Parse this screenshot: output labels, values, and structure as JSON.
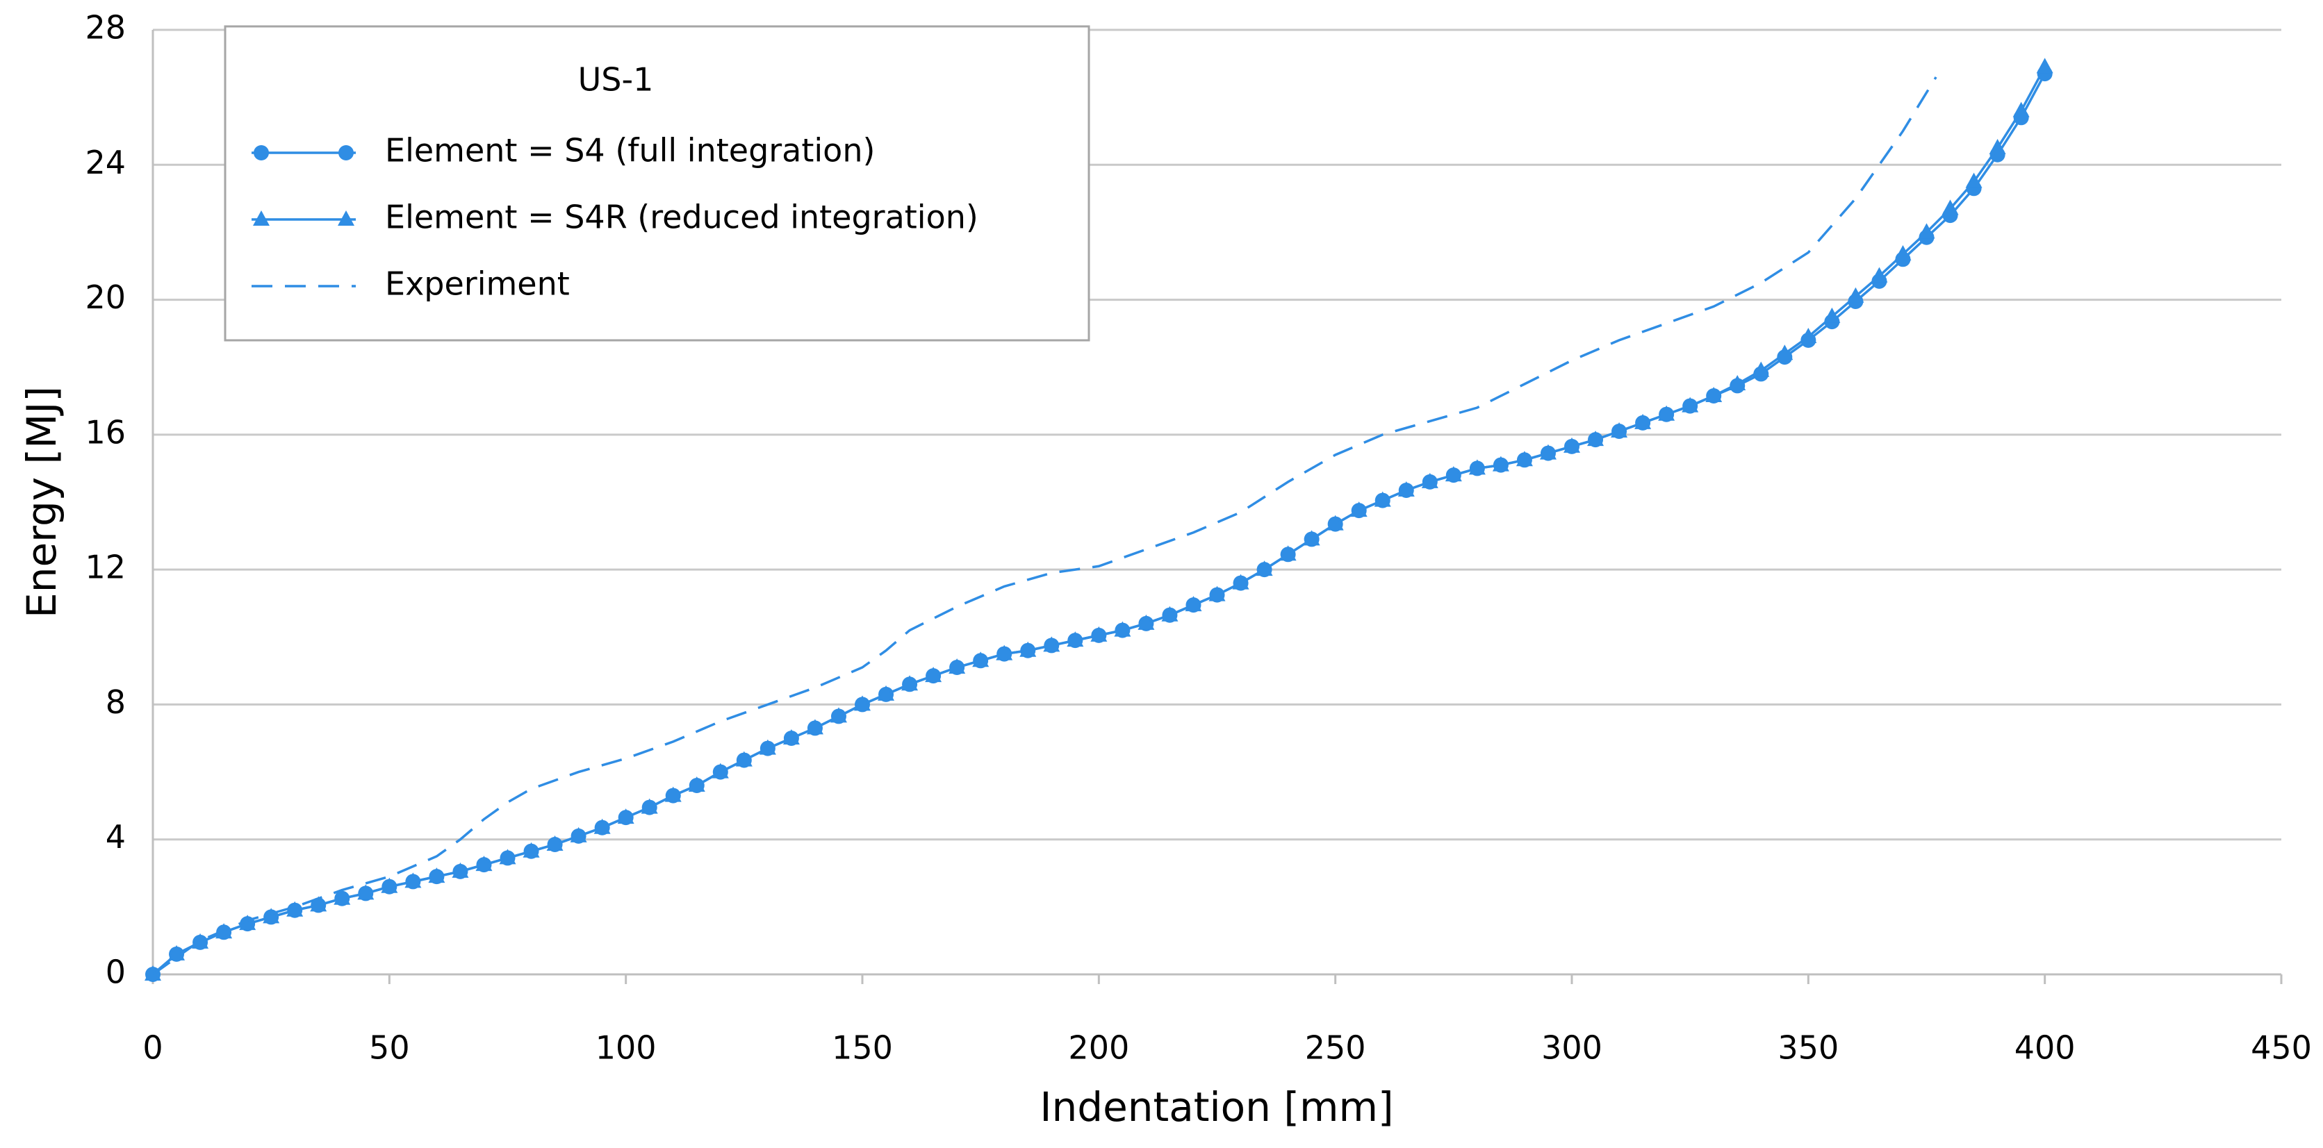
{
  "chart_data": {
    "type": "line",
    "xlabel": "Indentation [mm]",
    "ylabel": "Energy [MJ]",
    "legend_title": "US-1",
    "legend": "upper left",
    "grid": true,
    "xlim": [
      0,
      450
    ],
    "xticks": [
      0,
      50,
      100,
      150,
      200,
      250,
      300,
      350,
      400,
      450
    ],
    "ylim": [
      0,
      28
    ],
    "yticks": [
      0,
      4,
      8,
      12,
      16,
      20,
      24,
      28
    ],
    "series": [
      {
        "name": "Element = S4 (full integration)",
        "color": "#2f8de4",
        "marker": "circle",
        "dash": false,
        "x": [
          0,
          5,
          10,
          15,
          20,
          25,
          30,
          35,
          40,
          45,
          50,
          55,
          60,
          65,
          70,
          75,
          80,
          85,
          90,
          95,
          100,
          105,
          110,
          115,
          120,
          125,
          130,
          135,
          140,
          145,
          150,
          155,
          160,
          165,
          170,
          175,
          180,
          185,
          190,
          195,
          200,
          205,
          210,
          215,
          220,
          225,
          230,
          235,
          240,
          245,
          250,
          255,
          260,
          265,
          270,
          275,
          280,
          285,
          290,
          295,
          300,
          305,
          310,
          315,
          320,
          325,
          330,
          335,
          340,
          345,
          350,
          355,
          360,
          365,
          370,
          375,
          380,
          385,
          390,
          395,
          400
        ],
        "values": [
          0,
          0.6,
          0.95,
          1.25,
          1.5,
          1.7,
          1.9,
          2.05,
          2.25,
          2.4,
          2.6,
          2.75,
          2.9,
          3.05,
          3.25,
          3.45,
          3.65,
          3.85,
          4.1,
          4.35,
          4.65,
          4.95,
          5.3,
          5.6,
          6.0,
          6.35,
          6.7,
          7.0,
          7.3,
          7.65,
          8.0,
          8.3,
          8.6,
          8.85,
          9.1,
          9.3,
          9.5,
          9.6,
          9.75,
          9.9,
          10.05,
          10.2,
          10.4,
          10.65,
          10.95,
          11.25,
          11.6,
          12.0,
          12.45,
          12.9,
          13.35,
          13.75,
          14.05,
          14.35,
          14.6,
          14.8,
          15.0,
          15.1,
          15.25,
          15.45,
          15.65,
          15.85,
          16.1,
          16.35,
          16.6,
          16.85,
          17.15,
          17.45,
          17.8,
          18.3,
          18.8,
          19.35,
          19.95,
          20.55,
          21.2,
          21.85,
          22.5,
          23.3,
          24.3,
          25.4,
          26.7
        ]
      },
      {
        "name": "Element = S4R (reduced integration)",
        "color": "#2f8de4",
        "marker": "triangle",
        "dash": false,
        "x": [
          0,
          5,
          10,
          15,
          20,
          25,
          30,
          35,
          40,
          45,
          50,
          55,
          60,
          65,
          70,
          75,
          80,
          85,
          90,
          95,
          100,
          105,
          110,
          115,
          120,
          125,
          130,
          135,
          140,
          145,
          150,
          155,
          160,
          165,
          170,
          175,
          180,
          185,
          190,
          195,
          200,
          205,
          210,
          215,
          220,
          225,
          230,
          235,
          240,
          245,
          250,
          255,
          260,
          265,
          270,
          275,
          280,
          285,
          290,
          295,
          300,
          305,
          310,
          315,
          320,
          325,
          330,
          335,
          340,
          345,
          350,
          355,
          360,
          365,
          370,
          375,
          380,
          385,
          390,
          395,
          400
        ],
        "values": [
          0,
          0.6,
          0.95,
          1.25,
          1.5,
          1.7,
          1.9,
          2.05,
          2.25,
          2.4,
          2.6,
          2.75,
          2.9,
          3.05,
          3.25,
          3.45,
          3.65,
          3.85,
          4.1,
          4.35,
          4.65,
          4.95,
          5.3,
          5.6,
          6.0,
          6.35,
          6.7,
          7.0,
          7.3,
          7.65,
          8.0,
          8.3,
          8.6,
          8.85,
          9.1,
          9.3,
          9.5,
          9.6,
          9.75,
          9.9,
          10.05,
          10.2,
          10.4,
          10.65,
          10.95,
          11.25,
          11.6,
          12.0,
          12.45,
          12.9,
          13.35,
          13.75,
          14.05,
          14.35,
          14.6,
          14.8,
          15.0,
          15.1,
          15.25,
          15.45,
          15.65,
          15.85,
          16.1,
          16.35,
          16.6,
          16.85,
          17.15,
          17.5,
          17.9,
          18.4,
          18.9,
          19.5,
          20.1,
          20.7,
          21.35,
          22.0,
          22.7,
          23.5,
          24.5,
          25.6,
          26.9
        ]
      },
      {
        "name": "Experiment",
        "color": "#2f8de4",
        "marker": "none",
        "dash": true,
        "x": [
          0,
          10,
          20,
          30,
          40,
          50,
          60,
          65,
          70,
          75,
          80,
          90,
          100,
          110,
          120,
          130,
          140,
          150,
          155,
          160,
          170,
          180,
          190,
          200,
          210,
          220,
          230,
          240,
          250,
          260,
          270,
          280,
          290,
          300,
          310,
          320,
          330,
          340,
          350,
          360,
          370,
          377
        ],
        "values": [
          0,
          1.0,
          1.6,
          2.0,
          2.5,
          2.9,
          3.5,
          4.0,
          4.6,
          5.1,
          5.5,
          6.0,
          6.4,
          6.9,
          7.5,
          8.0,
          8.5,
          9.1,
          9.6,
          10.2,
          10.9,
          11.5,
          11.9,
          12.1,
          12.6,
          13.1,
          13.7,
          14.6,
          15.4,
          16.0,
          16.4,
          16.8,
          17.5,
          18.2,
          18.8,
          19.3,
          19.8,
          20.5,
          21.4,
          23.0,
          25.0,
          26.6
        ]
      }
    ]
  }
}
